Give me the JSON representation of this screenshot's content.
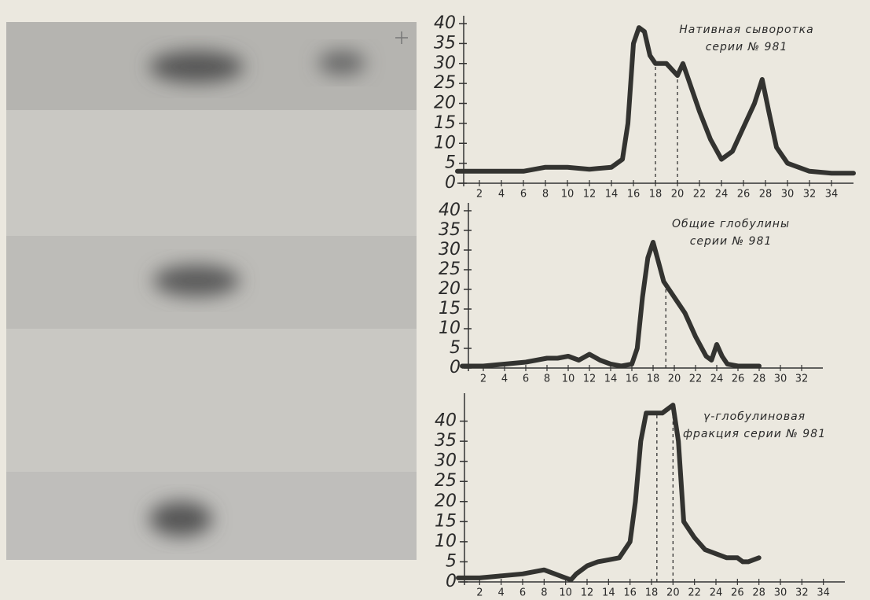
{
  "chart_data": [
    {
      "type": "line",
      "title": "Нативная сыворотка",
      "subtitle": "серии № 981",
      "color": "#333330",
      "x": [
        0,
        2,
        4,
        6,
        8,
        10,
        12,
        14,
        15,
        15.5,
        16,
        16.5,
        17,
        17.5,
        18,
        19,
        20,
        20.5,
        21,
        22,
        23,
        24,
        25,
        26,
        27,
        27.7,
        28.3,
        29,
        30,
        31,
        32,
        34,
        36
      ],
      "values": [
        3,
        3,
        3,
        3,
        4,
        4,
        3.5,
        4,
        6,
        15,
        35,
        39,
        38,
        32,
        30,
        30,
        27,
        30,
        26,
        18,
        11,
        6,
        8,
        14,
        20,
        26,
        18,
        9,
        5,
        4,
        3,
        2.5,
        2.5
      ],
      "xlim": [
        0,
        36
      ],
      "ylim": [
        0,
        40
      ],
      "xticks": [
        2,
        4,
        6,
        8,
        10,
        12,
        14,
        16,
        18,
        20,
        22,
        24,
        26,
        28,
        30,
        32,
        34
      ],
      "yticks": [
        0,
        5,
        10,
        15,
        20,
        25,
        30,
        35,
        40
      ],
      "vlines": [
        18,
        20
      ]
    },
    {
      "type": "line",
      "title": "Общие глобулины",
      "subtitle": "серии № 981",
      "color": "#333330",
      "x": [
        0,
        2,
        4,
        6,
        8,
        9,
        10,
        11,
        12,
        13,
        14,
        15,
        16,
        16.5,
        17,
        17.5,
        18,
        18.5,
        19,
        20,
        21,
        22,
        23,
        23.5,
        24,
        24.5,
        25,
        26,
        28
      ],
      "values": [
        0.5,
        0.5,
        1,
        1.5,
        2.5,
        2.5,
        3,
        2,
        3.5,
        2,
        1,
        0.5,
        1,
        5,
        18,
        28,
        32,
        27,
        22,
        18,
        14,
        8,
        3,
        2,
        6,
        3,
        1,
        0.5,
        0.5
      ],
      "xlim": [
        0,
        34
      ],
      "ylim": [
        0,
        40
      ],
      "xticks": [
        2,
        4,
        6,
        8,
        10,
        12,
        14,
        16,
        18,
        20,
        22,
        24,
        26,
        28,
        30,
        32
      ],
      "yticks": [
        0,
        5,
        10,
        15,
        20,
        25,
        30,
        35,
        40
      ],
      "vlines": [
        19.2
      ]
    },
    {
      "type": "line",
      "title": "γ-глобулиновая",
      "subtitle": "фракция серии № 981",
      "color": "#333330",
      "x": [
        0,
        2,
        4,
        6,
        8,
        9,
        10,
        10.5,
        11,
        12,
        13,
        14,
        15,
        16,
        16.5,
        17,
        17.5,
        18,
        19,
        19.5,
        20,
        20.5,
        21,
        22,
        23,
        24,
        25,
        26,
        26.5,
        27,
        28
      ],
      "values": [
        1,
        1,
        1.5,
        2,
        3,
        2,
        1,
        0.5,
        2,
        4,
        5,
        5.5,
        6,
        10,
        20,
        35,
        42,
        42,
        42,
        43,
        44,
        35,
        15,
        11,
        8,
        7,
        6,
        6,
        5,
        5,
        6
      ],
      "xlim": [
        0,
        36
      ],
      "ylim": [
        0,
        45
      ],
      "xticks": [
        2,
        4,
        6,
        8,
        10,
        12,
        14,
        16,
        18,
        20,
        22,
        24,
        26,
        28,
        30,
        32,
        34
      ],
      "yticks": [
        0,
        5,
        10,
        15,
        20,
        25,
        30,
        35,
        40
      ],
      "vlines": [
        18.5,
        20
      ]
    }
  ]
}
